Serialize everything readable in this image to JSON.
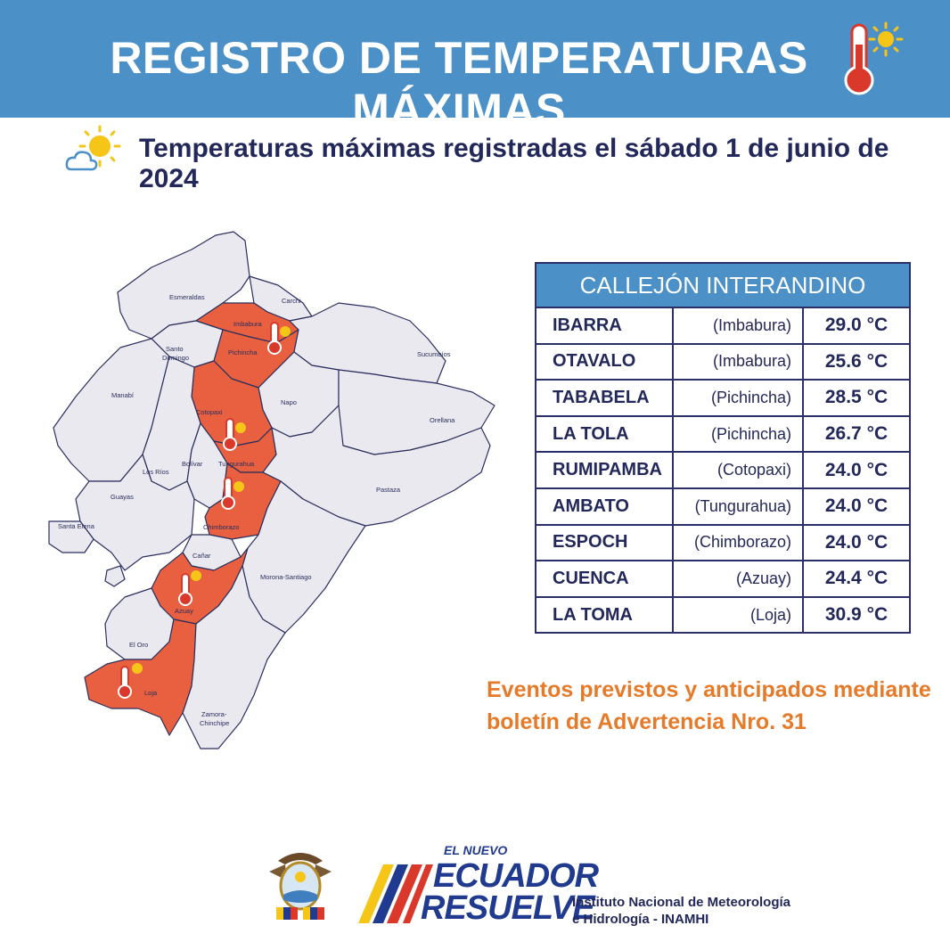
{
  "header": {
    "title": "REGISTRO DE TEMPERATURAS MÁXIMAS",
    "title_icon": "thermometer-sun-icon",
    "subtitle": "Temperaturas máximas registradas el sábado 1 de junio de 2024",
    "subtitle_icon": "sun-cloud-icon",
    "banner_color": "#4b90c7"
  },
  "map": {
    "highlight_color": "#e8603f",
    "base_color": "#e9e9ef",
    "provinces": [
      "Esmeraldas",
      "Carchi",
      "Imbabura",
      "Santo Domingo",
      "Pichincha",
      "Sucumbíos",
      "Manabí",
      "Napo",
      "Orellana",
      "Cotopaxi",
      "Los Ríos",
      "Bolívar",
      "Tungurahua",
      "Guayas",
      "Pastaza",
      "Santa Elena",
      "Chimborazo",
      "Cañar",
      "Morona-Santiago",
      "Azuay",
      "El Oro",
      "Loja",
      "Zamora-Chinchipe"
    ],
    "highlighted": [
      "Imbabura",
      "Pichincha",
      "Cotopaxi",
      "Tungurahua",
      "Chimborazo",
      "Azuay",
      "Loja"
    ]
  },
  "table": {
    "title": "CALLEJÓN INTERANDINO",
    "rows": [
      {
        "city": "IBARRA",
        "province": "(Imbabura)",
        "temp": "29.0 °C"
      },
      {
        "city": "OTAVALO",
        "province": "(Imbabura)",
        "temp": "25.6 °C"
      },
      {
        "city": "TABABELA",
        "province": "(Pichincha)",
        "temp": "28.5 °C"
      },
      {
        "city": "LA TOLA",
        "province": "(Pichincha)",
        "temp": "26.7 °C"
      },
      {
        "city": "RUMIPAMBA",
        "province": "(Cotopaxi)",
        "temp": "24.0 °C"
      },
      {
        "city": "AMBATO",
        "province": "(Tungurahua)",
        "temp": "24.0 °C"
      },
      {
        "city": "ESPOCH",
        "province": "(Chimborazo)",
        "temp": "24.0 °C"
      },
      {
        "city": "CUENCA",
        "province": "(Azuay)",
        "temp": "24.4 °C"
      },
      {
        "city": "LA TOMA",
        "province": "(Loja)",
        "temp": "30.9 °C"
      }
    ]
  },
  "note": {
    "line1": "Eventos previstos y anticipados mediante",
    "line2": "boletín de Advertencia Nro. 31",
    "color": "#e57b2a"
  },
  "footer": {
    "shield_icon": "ecuador-coat-of-arms-icon",
    "logo_line1": "EL NUEVO",
    "logo_line2": "ECUADOR",
    "logo_line3": "RESUELVE",
    "institution_line1": "Instituto Nacional de Meteorología",
    "institution_line2": "e Hidrología - INAMHI"
  }
}
